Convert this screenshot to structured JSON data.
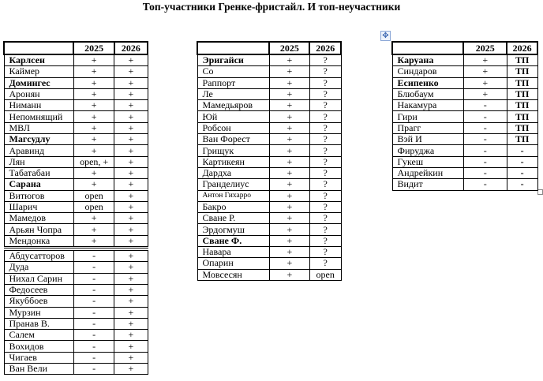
{
  "title": "Топ-участники Гренке-фристайл. И топ-неучастники",
  "header": {
    "col1": "",
    "col2": "2025",
    "col3": "2026"
  },
  "tables": [
    {
      "sections": [
        [
          {
            "name": "Карлсен",
            "y2025": "+",
            "y2026": "+",
            "bold": true
          },
          {
            "name": "Каймер",
            "y2025": "+",
            "y2026": "+"
          },
          {
            "name": "Домингес",
            "y2025": "+",
            "y2026": "+",
            "bold": true
          },
          {
            "name": "Аронян",
            "y2025": "+",
            "y2026": "+"
          },
          {
            "name": "Ниманн",
            "y2025": "+",
            "y2026": "+"
          },
          {
            "name": "Непомнящий",
            "y2025": "+",
            "y2026": "+"
          },
          {
            "name": "МВЛ",
            "y2025": "+",
            "y2026": "+"
          },
          {
            "name": "Магсудлу",
            "y2025": "+",
            "y2026": "+",
            "bold": true
          },
          {
            "name": "Аравинд",
            "y2025": "+",
            "y2026": "+"
          },
          {
            "name": "Лян",
            "y2025": "open, +",
            "y2026": "+"
          },
          {
            "name": "Табатабаи",
            "y2025": "+",
            "y2026": "+"
          },
          {
            "name": "Сарана",
            "y2025": "+",
            "y2026": "+",
            "bold": true
          },
          {
            "name": "Витюгов",
            "y2025": "open",
            "y2026": "+"
          },
          {
            "name": "Шарич",
            "y2025": "open",
            "y2026": "+"
          },
          {
            "name": "Мамедов",
            "y2025": "+",
            "y2026": "+"
          },
          {
            "name": "Арьян Чопра",
            "y2025": "+",
            "y2026": "+"
          },
          {
            "name": "Мендонка",
            "y2025": "+",
            "y2026": "+"
          }
        ],
        [
          {
            "name": "Абдусатторов",
            "y2025": "-",
            "y2026": "+"
          },
          {
            "name": "Дуда",
            "y2025": "-",
            "y2026": "+"
          },
          {
            "name": "Нихал Сарин",
            "y2025": "-",
            "y2026": "+"
          },
          {
            "name": "Федосеев",
            "y2025": "-",
            "y2026": "+"
          },
          {
            "name": "Якуббоев",
            "y2025": "-",
            "y2026": "+"
          },
          {
            "name": "Мурзин",
            "y2025": "-",
            "y2026": "+"
          },
          {
            "name": "Пранав В.",
            "y2025": "-",
            "y2026": "+"
          },
          {
            "name": "Салем",
            "y2025": "-",
            "y2026": "+"
          },
          {
            "name": "Вохидов",
            "y2025": "-",
            "y2026": "+"
          },
          {
            "name": "Чигаев",
            "y2025": "-",
            "y2026": "+"
          },
          {
            "name": "Ван Вели",
            "y2025": "-",
            "y2026": "+"
          }
        ]
      ]
    },
    {
      "sections": [
        [
          {
            "name": "Эригайси",
            "y2025": "+",
            "y2026": "?",
            "bold": true
          },
          {
            "name": "Со",
            "y2025": "+",
            "y2026": "?"
          },
          {
            "name": "Раппорт",
            "y2025": "+",
            "y2026": "?"
          },
          {
            "name": "Ле",
            "y2025": "+",
            "y2026": "?"
          },
          {
            "name": "Мамедьяров",
            "y2025": "+",
            "y2026": "?"
          },
          {
            "name": "Юй",
            "y2025": "+",
            "y2026": "?"
          },
          {
            "name": "Робсон",
            "y2025": "+",
            "y2026": "?"
          },
          {
            "name": "Ван Форест",
            "y2025": "+",
            "y2026": "?"
          },
          {
            "name": "Грищук",
            "y2025": "+",
            "y2026": "?"
          },
          {
            "name": "Картикеян",
            "y2025": "+",
            "y2026": "?"
          },
          {
            "name": "Дардха",
            "y2025": "+",
            "y2026": "?"
          },
          {
            "name": "Гранделиус",
            "y2025": "+",
            "y2026": "?"
          },
          {
            "name": "Антон Гихарро",
            "y2025": "+",
            "y2026": "?",
            "small": true
          },
          {
            "name": "Бакро",
            "y2025": "+",
            "y2026": "?"
          },
          {
            "name": "Сване Р.",
            "y2025": "+",
            "y2026": "?"
          },
          {
            "name": "Эрдогмуш",
            "y2025": "+",
            "y2026": "?"
          },
          {
            "name": "Сване Ф.",
            "y2025": "+",
            "y2026": "?",
            "bold": true
          },
          {
            "name": "Навара",
            "y2025": "+",
            "y2026": "?"
          },
          {
            "name": "Опарин",
            "y2025": "+",
            "y2026": "?"
          },
          {
            "name": "Мовсесян",
            "y2025": "+",
            "y2026": "open"
          }
        ]
      ]
    },
    {
      "sections": [
        [
          {
            "name": "Каруана",
            "y2025": "+",
            "y2026": "ТП",
            "bold": true
          },
          {
            "name": "Синдаров",
            "y2025": "+",
            "y2026": "ТП"
          },
          {
            "name": "Есипенко",
            "y2025": "+",
            "y2026": "ТП",
            "bold": true
          },
          {
            "name": "Блюбаум",
            "y2025": "+",
            "y2026": "ТП"
          },
          {
            "name": "Накамура",
            "y2025": "-",
            "y2026": "ТП"
          },
          {
            "name": "Гири",
            "y2025": "-",
            "y2026": "ТП"
          },
          {
            "name": "Прагг",
            "y2025": "-",
            "y2026": "ТП"
          },
          {
            "name": "Вэй И",
            "y2025": "-",
            "y2026": "ТП"
          },
          {
            "name": "Фируджа",
            "y2025": "-",
            "y2026": "-"
          },
          {
            "name": "Гукеш",
            "y2025": "-",
            "y2026": "-"
          },
          {
            "name": "Андрейкин",
            "y2025": "-",
            "y2026": "-"
          },
          {
            "name": "Видит",
            "y2025": "-",
            "y2026": "-"
          }
        ]
      ]
    }
  ],
  "icons": {
    "move_handle": "move-icon",
    "resize_handle": "resize-handle-icon"
  }
}
